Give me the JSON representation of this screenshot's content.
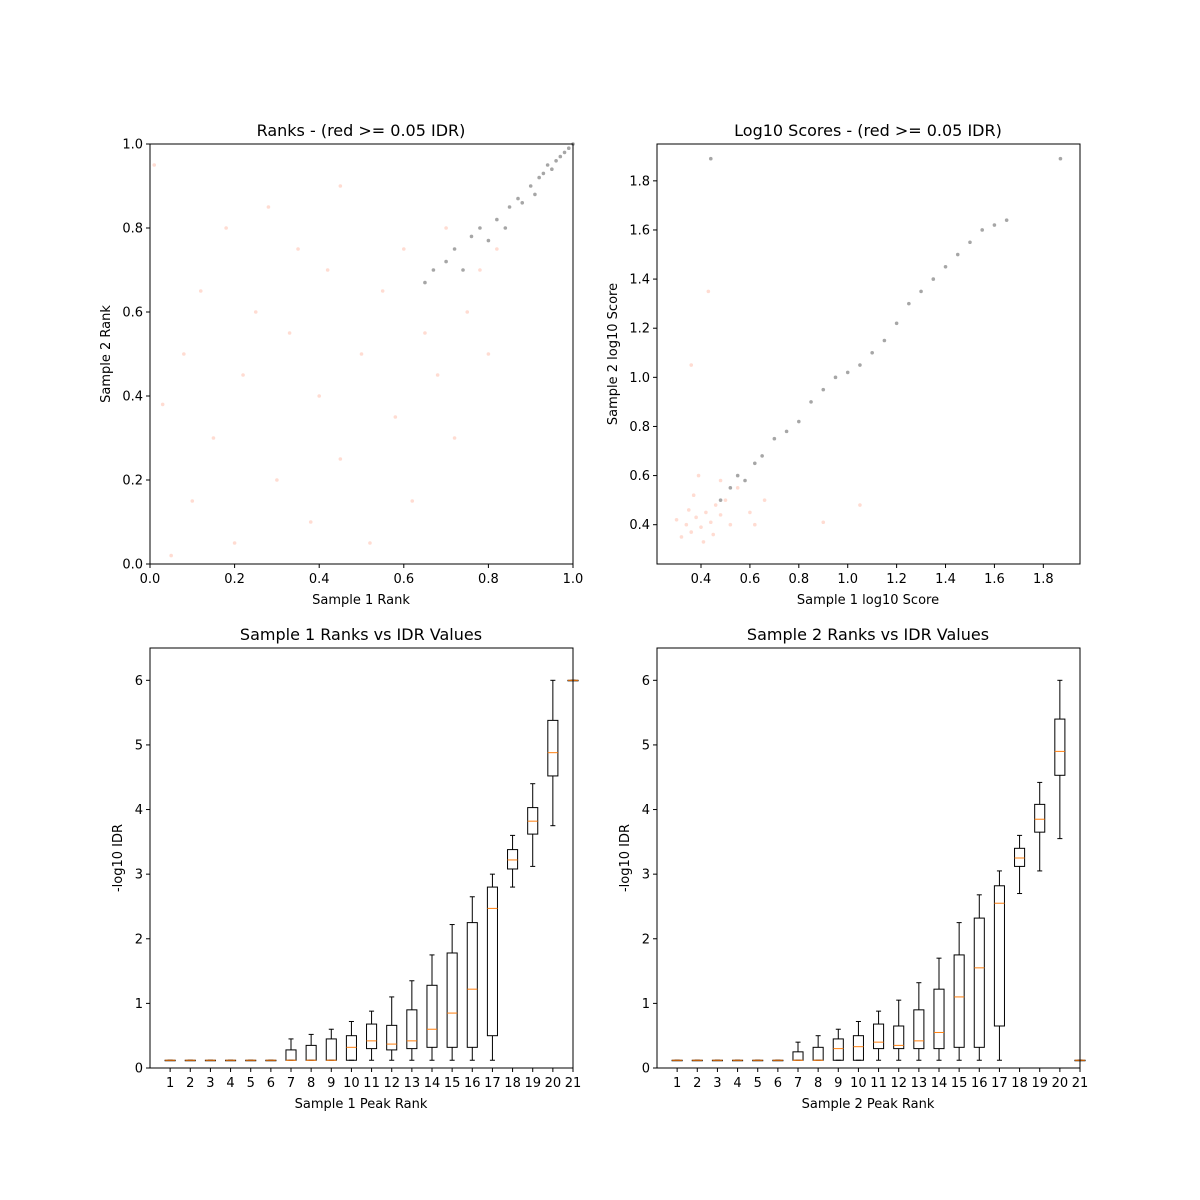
{
  "chart_data": [
    {
      "type": "scatter",
      "title": "Ranks - (red >= 0.05 IDR)",
      "xlabel": "Sample 1 Rank",
      "ylabel": "Sample 2 Rank",
      "xlim": [
        0,
        1
      ],
      "ylim": [
        0,
        1
      ],
      "xticks": [
        "0.0",
        "0.2",
        "0.4",
        "0.6",
        "0.8",
        "1.0"
      ],
      "yticks": [
        "0.0",
        "0.2",
        "0.4",
        "0.6",
        "0.8",
        "1.0"
      ],
      "grid": false,
      "series": [
        {
          "color": "#ff8c69",
          "points": [
            [
              0.05,
              0.02
            ],
            [
              0.1,
              0.15
            ],
            [
              0.15,
              0.3
            ],
            [
              0.2,
              0.05
            ],
            [
              0.22,
              0.45
            ],
            [
              0.25,
              0.6
            ],
            [
              0.3,
              0.2
            ],
            [
              0.33,
              0.55
            ],
            [
              0.38,
              0.1
            ],
            [
              0.4,
              0.4
            ],
            [
              0.42,
              0.7
            ],
            [
              0.45,
              0.25
            ],
            [
              0.5,
              0.5
            ],
            [
              0.52,
              0.05
            ],
            [
              0.55,
              0.65
            ],
            [
              0.58,
              0.35
            ],
            [
              0.6,
              0.75
            ],
            [
              0.62,
              0.15
            ],
            [
              0.65,
              0.55
            ],
            [
              0.68,
              0.45
            ],
            [
              0.7,
              0.8
            ],
            [
              0.72,
              0.3
            ],
            [
              0.75,
              0.6
            ],
            [
              0.78,
              0.7
            ],
            [
              0.8,
              0.5
            ],
            [
              0.82,
              0.75
            ],
            [
              0.08,
              0.5
            ],
            [
              0.12,
              0.65
            ],
            [
              0.18,
              0.8
            ],
            [
              0.28,
              0.85
            ],
            [
              0.35,
              0.75
            ],
            [
              0.03,
              0.38
            ],
            [
              0.01,
              0.95
            ],
            [
              0.45,
              0.9
            ]
          ]
        },
        {
          "color": "#000000",
          "points": [
            [
              0.65,
              0.67
            ],
            [
              0.67,
              0.7
            ],
            [
              0.7,
              0.72
            ],
            [
              0.72,
              0.75
            ],
            [
              0.74,
              0.7
            ],
            [
              0.76,
              0.78
            ],
            [
              0.78,
              0.8
            ],
            [
              0.8,
              0.77
            ],
            [
              0.82,
              0.82
            ],
            [
              0.84,
              0.8
            ],
            [
              0.85,
              0.85
            ],
            [
              0.87,
              0.87
            ],
            [
              0.88,
              0.86
            ],
            [
              0.9,
              0.9
            ],
            [
              0.91,
              0.88
            ],
            [
              0.92,
              0.92
            ],
            [
              0.93,
              0.93
            ],
            [
              0.94,
              0.95
            ],
            [
              0.95,
              0.94
            ],
            [
              0.96,
              0.96
            ],
            [
              0.97,
              0.97
            ],
            [
              0.98,
              0.98
            ],
            [
              0.99,
              0.99
            ],
            [
              1.0,
              1.0
            ]
          ]
        }
      ]
    },
    {
      "type": "scatter",
      "title": "Log10 Scores - (red >= 0.05 IDR)",
      "xlabel": "Sample 1 log10 Score",
      "ylabel": "Sample 2 log10 Score",
      "xlim": [
        0.22,
        1.95
      ],
      "ylim": [
        0.24,
        1.95
      ],
      "xticks": [
        "0.4",
        "0.6",
        "0.8",
        "1.0",
        "1.2",
        "1.4",
        "1.6",
        "1.8"
      ],
      "yticks": [
        "0.4",
        "0.6",
        "0.8",
        "1.0",
        "1.2",
        "1.4",
        "1.6",
        "1.8"
      ],
      "grid": false,
      "series": [
        {
          "color": "#ff8c69",
          "points": [
            [
              0.32,
              0.35
            ],
            [
              0.34,
              0.4
            ],
            [
              0.36,
              0.37
            ],
            [
              0.38,
              0.43
            ],
            [
              0.4,
              0.39
            ],
            [
              0.42,
              0.45
            ],
            [
              0.44,
              0.41
            ],
            [
              0.46,
              0.48
            ],
            [
              0.48,
              0.44
            ],
            [
              0.5,
              0.5
            ],
            [
              0.35,
              0.46
            ],
            [
              0.41,
              0.33
            ],
            [
              0.45,
              0.36
            ],
            [
              0.37,
              0.52
            ],
            [
              0.52,
              0.4
            ],
            [
              0.3,
              0.42
            ],
            [
              0.55,
              0.55
            ],
            [
              0.6,
              0.45
            ],
            [
              0.62,
              0.4
            ],
            [
              0.66,
              0.5
            ],
            [
              0.48,
              0.58
            ],
            [
              0.39,
              0.6
            ],
            [
              0.36,
              1.05
            ],
            [
              0.43,
              1.35
            ],
            [
              0.9,
              0.41
            ],
            [
              1.05,
              0.48
            ]
          ]
        },
        {
          "color": "#000000",
          "points": [
            [
              0.48,
              0.5
            ],
            [
              0.52,
              0.55
            ],
            [
              0.55,
              0.6
            ],
            [
              0.58,
              0.58
            ],
            [
              0.62,
              0.65
            ],
            [
              0.65,
              0.68
            ],
            [
              0.7,
              0.75
            ],
            [
              0.75,
              0.78
            ],
            [
              0.8,
              0.82
            ],
            [
              0.85,
              0.9
            ],
            [
              0.9,
              0.95
            ],
            [
              0.95,
              1.0
            ],
            [
              1.0,
              1.02
            ],
            [
              1.05,
              1.05
            ],
            [
              1.1,
              1.1
            ],
            [
              1.15,
              1.15
            ],
            [
              1.2,
              1.22
            ],
            [
              1.25,
              1.3
            ],
            [
              1.3,
              1.35
            ],
            [
              1.35,
              1.4
            ],
            [
              1.4,
              1.45
            ],
            [
              1.45,
              1.5
            ],
            [
              1.5,
              1.55
            ],
            [
              1.55,
              1.6
            ],
            [
              1.6,
              1.62
            ],
            [
              1.65,
              1.64
            ],
            [
              1.87,
              1.89
            ],
            [
              0.44,
              1.89
            ]
          ]
        }
      ]
    },
    {
      "type": "boxplot",
      "title": "Sample 1 Ranks vs IDR Values",
      "xlabel": "Sample 1 Peak Rank",
      "ylabel": "-log10 IDR",
      "xlim": [
        0,
        21
      ],
      "ylim": [
        0,
        6.5
      ],
      "xticks": [
        "1",
        "2",
        "3",
        "4",
        "5",
        "6",
        "7",
        "8",
        "9",
        "10",
        "11",
        "12",
        "13",
        "14",
        "15",
        "16",
        "17",
        "18",
        "19",
        "20",
        "21"
      ],
      "yticks": [
        "0",
        "1",
        "2",
        "3",
        "4",
        "5",
        "6"
      ],
      "grid": false,
      "boxes": [
        {
          "x": 1,
          "whislo": 0.12,
          "q1": 0.12,
          "med": 0.12,
          "q3": 0.12,
          "whishi": 0.12
        },
        {
          "x": 2,
          "whislo": 0.12,
          "q1": 0.12,
          "med": 0.12,
          "q3": 0.12,
          "whishi": 0.12
        },
        {
          "x": 3,
          "whislo": 0.12,
          "q1": 0.12,
          "med": 0.12,
          "q3": 0.12,
          "whishi": 0.12
        },
        {
          "x": 4,
          "whislo": 0.12,
          "q1": 0.12,
          "med": 0.12,
          "q3": 0.12,
          "whishi": 0.12
        },
        {
          "x": 5,
          "whislo": 0.12,
          "q1": 0.12,
          "med": 0.12,
          "q3": 0.12,
          "whishi": 0.12
        },
        {
          "x": 6,
          "whislo": 0.12,
          "q1": 0.12,
          "med": 0.12,
          "q3": 0.12,
          "whishi": 0.12
        },
        {
          "x": 7,
          "whislo": 0.12,
          "q1": 0.12,
          "med": 0.12,
          "q3": 0.28,
          "whishi": 0.45
        },
        {
          "x": 8,
          "whislo": 0.12,
          "q1": 0.12,
          "med": 0.12,
          "q3": 0.35,
          "whishi": 0.52
        },
        {
          "x": 9,
          "whislo": 0.12,
          "q1": 0.12,
          "med": 0.12,
          "q3": 0.45,
          "whishi": 0.6
        },
        {
          "x": 10,
          "whislo": 0.12,
          "q1": 0.12,
          "med": 0.32,
          "q3": 0.5,
          "whishi": 0.72
        },
        {
          "x": 11,
          "whislo": 0.12,
          "q1": 0.3,
          "med": 0.42,
          "q3": 0.68,
          "whishi": 0.88
        },
        {
          "x": 12,
          "whislo": 0.12,
          "q1": 0.28,
          "med": 0.37,
          "q3": 0.66,
          "whishi": 1.1
        },
        {
          "x": 13,
          "whislo": 0.12,
          "q1": 0.3,
          "med": 0.42,
          "q3": 0.9,
          "whishi": 1.35
        },
        {
          "x": 14,
          "whislo": 0.12,
          "q1": 0.32,
          "med": 0.6,
          "q3": 1.28,
          "whishi": 1.75
        },
        {
          "x": 15,
          "whislo": 0.12,
          "q1": 0.32,
          "med": 0.85,
          "q3": 1.78,
          "whishi": 2.22
        },
        {
          "x": 16,
          "whislo": 0.12,
          "q1": 0.32,
          "med": 1.22,
          "q3": 2.25,
          "whishi": 2.65
        },
        {
          "x": 17,
          "whislo": 0.12,
          "q1": 0.5,
          "med": 2.47,
          "q3": 2.8,
          "whishi": 3.0
        },
        {
          "x": 18,
          "whislo": 2.8,
          "q1": 3.08,
          "med": 3.22,
          "q3": 3.38,
          "whishi": 3.6
        },
        {
          "x": 19,
          "whislo": 3.12,
          "q1": 3.62,
          "med": 3.82,
          "q3": 4.03,
          "whishi": 4.4
        },
        {
          "x": 20,
          "whislo": 3.75,
          "q1": 4.52,
          "med": 4.88,
          "q3": 5.38,
          "whishi": 6.0
        },
        {
          "x": 21,
          "whislo": 6.0,
          "q1": 6.0,
          "med": 6.0,
          "q3": 6.0,
          "whishi": 6.0
        }
      ]
    },
    {
      "type": "boxplot",
      "title": "Sample 2 Ranks vs IDR Values",
      "xlabel": "Sample 2 Peak Rank",
      "ylabel": "-log10 IDR",
      "xlim": [
        0,
        21
      ],
      "ylim": [
        0,
        6.5
      ],
      "xticks": [
        "1",
        "2",
        "3",
        "4",
        "5",
        "6",
        "7",
        "8",
        "9",
        "10",
        "11",
        "12",
        "13",
        "14",
        "15",
        "16",
        "17",
        "18",
        "19",
        "20",
        "21"
      ],
      "yticks": [
        "0",
        "1",
        "2",
        "3",
        "4",
        "5",
        "6"
      ],
      "grid": false,
      "boxes": [
        {
          "x": 1,
          "whislo": 0.12,
          "q1": 0.12,
          "med": 0.12,
          "q3": 0.12,
          "whishi": 0.12
        },
        {
          "x": 2,
          "whislo": 0.12,
          "q1": 0.12,
          "med": 0.12,
          "q3": 0.12,
          "whishi": 0.12
        },
        {
          "x": 3,
          "whislo": 0.12,
          "q1": 0.12,
          "med": 0.12,
          "q3": 0.12,
          "whishi": 0.12
        },
        {
          "x": 4,
          "whislo": 0.12,
          "q1": 0.12,
          "med": 0.12,
          "q3": 0.12,
          "whishi": 0.12
        },
        {
          "x": 5,
          "whislo": 0.12,
          "q1": 0.12,
          "med": 0.12,
          "q3": 0.12,
          "whishi": 0.12
        },
        {
          "x": 6,
          "whislo": 0.12,
          "q1": 0.12,
          "med": 0.12,
          "q3": 0.12,
          "whishi": 0.12
        },
        {
          "x": 7,
          "whislo": 0.12,
          "q1": 0.12,
          "med": 0.12,
          "q3": 0.25,
          "whishi": 0.4
        },
        {
          "x": 8,
          "whislo": 0.12,
          "q1": 0.12,
          "med": 0.12,
          "q3": 0.32,
          "whishi": 0.5
        },
        {
          "x": 9,
          "whislo": 0.12,
          "q1": 0.12,
          "med": 0.3,
          "q3": 0.45,
          "whishi": 0.6
        },
        {
          "x": 10,
          "whislo": 0.12,
          "q1": 0.12,
          "med": 0.33,
          "q3": 0.5,
          "whishi": 0.72
        },
        {
          "x": 11,
          "whislo": 0.12,
          "q1": 0.3,
          "med": 0.4,
          "q3": 0.68,
          "whishi": 0.88
        },
        {
          "x": 12,
          "whislo": 0.12,
          "q1": 0.3,
          "med": 0.35,
          "q3": 0.65,
          "whishi": 1.05
        },
        {
          "x": 13,
          "whislo": 0.12,
          "q1": 0.3,
          "med": 0.42,
          "q3": 0.9,
          "whishi": 1.32
        },
        {
          "x": 14,
          "whislo": 0.12,
          "q1": 0.3,
          "med": 0.55,
          "q3": 1.22,
          "whishi": 1.7
        },
        {
          "x": 15,
          "whislo": 0.12,
          "q1": 0.32,
          "med": 1.1,
          "q3": 1.75,
          "whishi": 2.25
        },
        {
          "x": 16,
          "whislo": 0.12,
          "q1": 0.32,
          "med": 1.55,
          "q3": 2.32,
          "whishi": 2.68
        },
        {
          "x": 17,
          "whislo": 0.12,
          "q1": 0.65,
          "med": 2.55,
          "q3": 2.82,
          "whishi": 3.05
        },
        {
          "x": 18,
          "whislo": 2.7,
          "q1": 3.12,
          "med": 3.25,
          "q3": 3.4,
          "whishi": 3.6
        },
        {
          "x": 19,
          "whislo": 3.05,
          "q1": 3.65,
          "med": 3.85,
          "q3": 4.08,
          "whishi": 4.42
        },
        {
          "x": 20,
          "whislo": 3.55,
          "q1": 4.53,
          "med": 4.9,
          "q3": 5.4,
          "whishi": 6.0
        },
        {
          "x": 21,
          "whislo": 0.12,
          "q1": 0.12,
          "med": 0.12,
          "q3": 0.12,
          "whishi": 0.12
        }
      ]
    }
  ]
}
